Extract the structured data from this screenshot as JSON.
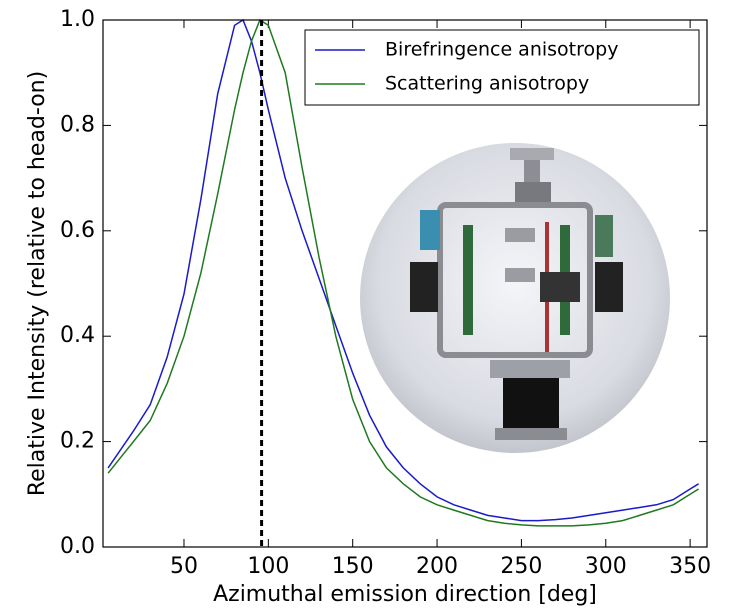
{
  "chart_data": {
    "type": "line",
    "x_label": "Azimuthal emission direction [deg]",
    "y_label": "Relative Intensity (relative to head-on)",
    "x": [
      5,
      20,
      30,
      40,
      50,
      60,
      70,
      80,
      85,
      90,
      95,
      100,
      110,
      120,
      130,
      140,
      150,
      160,
      170,
      180,
      190,
      200,
      210,
      220,
      230,
      240,
      250,
      260,
      270,
      280,
      290,
      300,
      310,
      320,
      330,
      340,
      350,
      355
    ],
    "series": [
      {
        "name": "Birefringence anisotropy",
        "color": "#1a1acc",
        "values": [
          0.15,
          0.22,
          0.27,
          0.36,
          0.48,
          0.66,
          0.86,
          0.99,
          1.0,
          0.96,
          0.9,
          0.83,
          0.7,
          0.6,
          0.51,
          0.42,
          0.33,
          0.25,
          0.19,
          0.15,
          0.12,
          0.095,
          0.08,
          0.07,
          0.06,
          0.055,
          0.05,
          0.05,
          0.052,
          0.055,
          0.06,
          0.065,
          0.07,
          0.075,
          0.08,
          0.09,
          0.11,
          0.12
        ]
      },
      {
        "name": "Scattering anisotropy",
        "color": "#1f7a1f",
        "values": [
          0.14,
          0.2,
          0.24,
          0.31,
          0.4,
          0.52,
          0.67,
          0.83,
          0.9,
          0.96,
          1.0,
          0.99,
          0.9,
          0.72,
          0.55,
          0.4,
          0.28,
          0.2,
          0.15,
          0.12,
          0.095,
          0.08,
          0.07,
          0.06,
          0.05,
          0.045,
          0.042,
          0.04,
          0.04,
          0.04,
          0.042,
          0.045,
          0.05,
          0.06,
          0.07,
          0.08,
          0.1,
          0.11
        ]
      }
    ],
    "vline": 96,
    "xlim": [
      2,
      360
    ],
    "ylim": [
      0,
      1
    ],
    "xticks": [
      50,
      100,
      150,
      200,
      250,
      300,
      350
    ],
    "yticks": [
      {
        "value": 0,
        "label": "0.0"
      },
      {
        "value": 0.2,
        "label": "0.2"
      },
      {
        "value": 0.4,
        "label": "0.4"
      },
      {
        "value": 0.6,
        "label": "0.6"
      },
      {
        "value": 0.8,
        "label": "0.8"
      },
      {
        "value": 1,
        "label": "1.0"
      }
    ],
    "legend": "upper right"
  }
}
